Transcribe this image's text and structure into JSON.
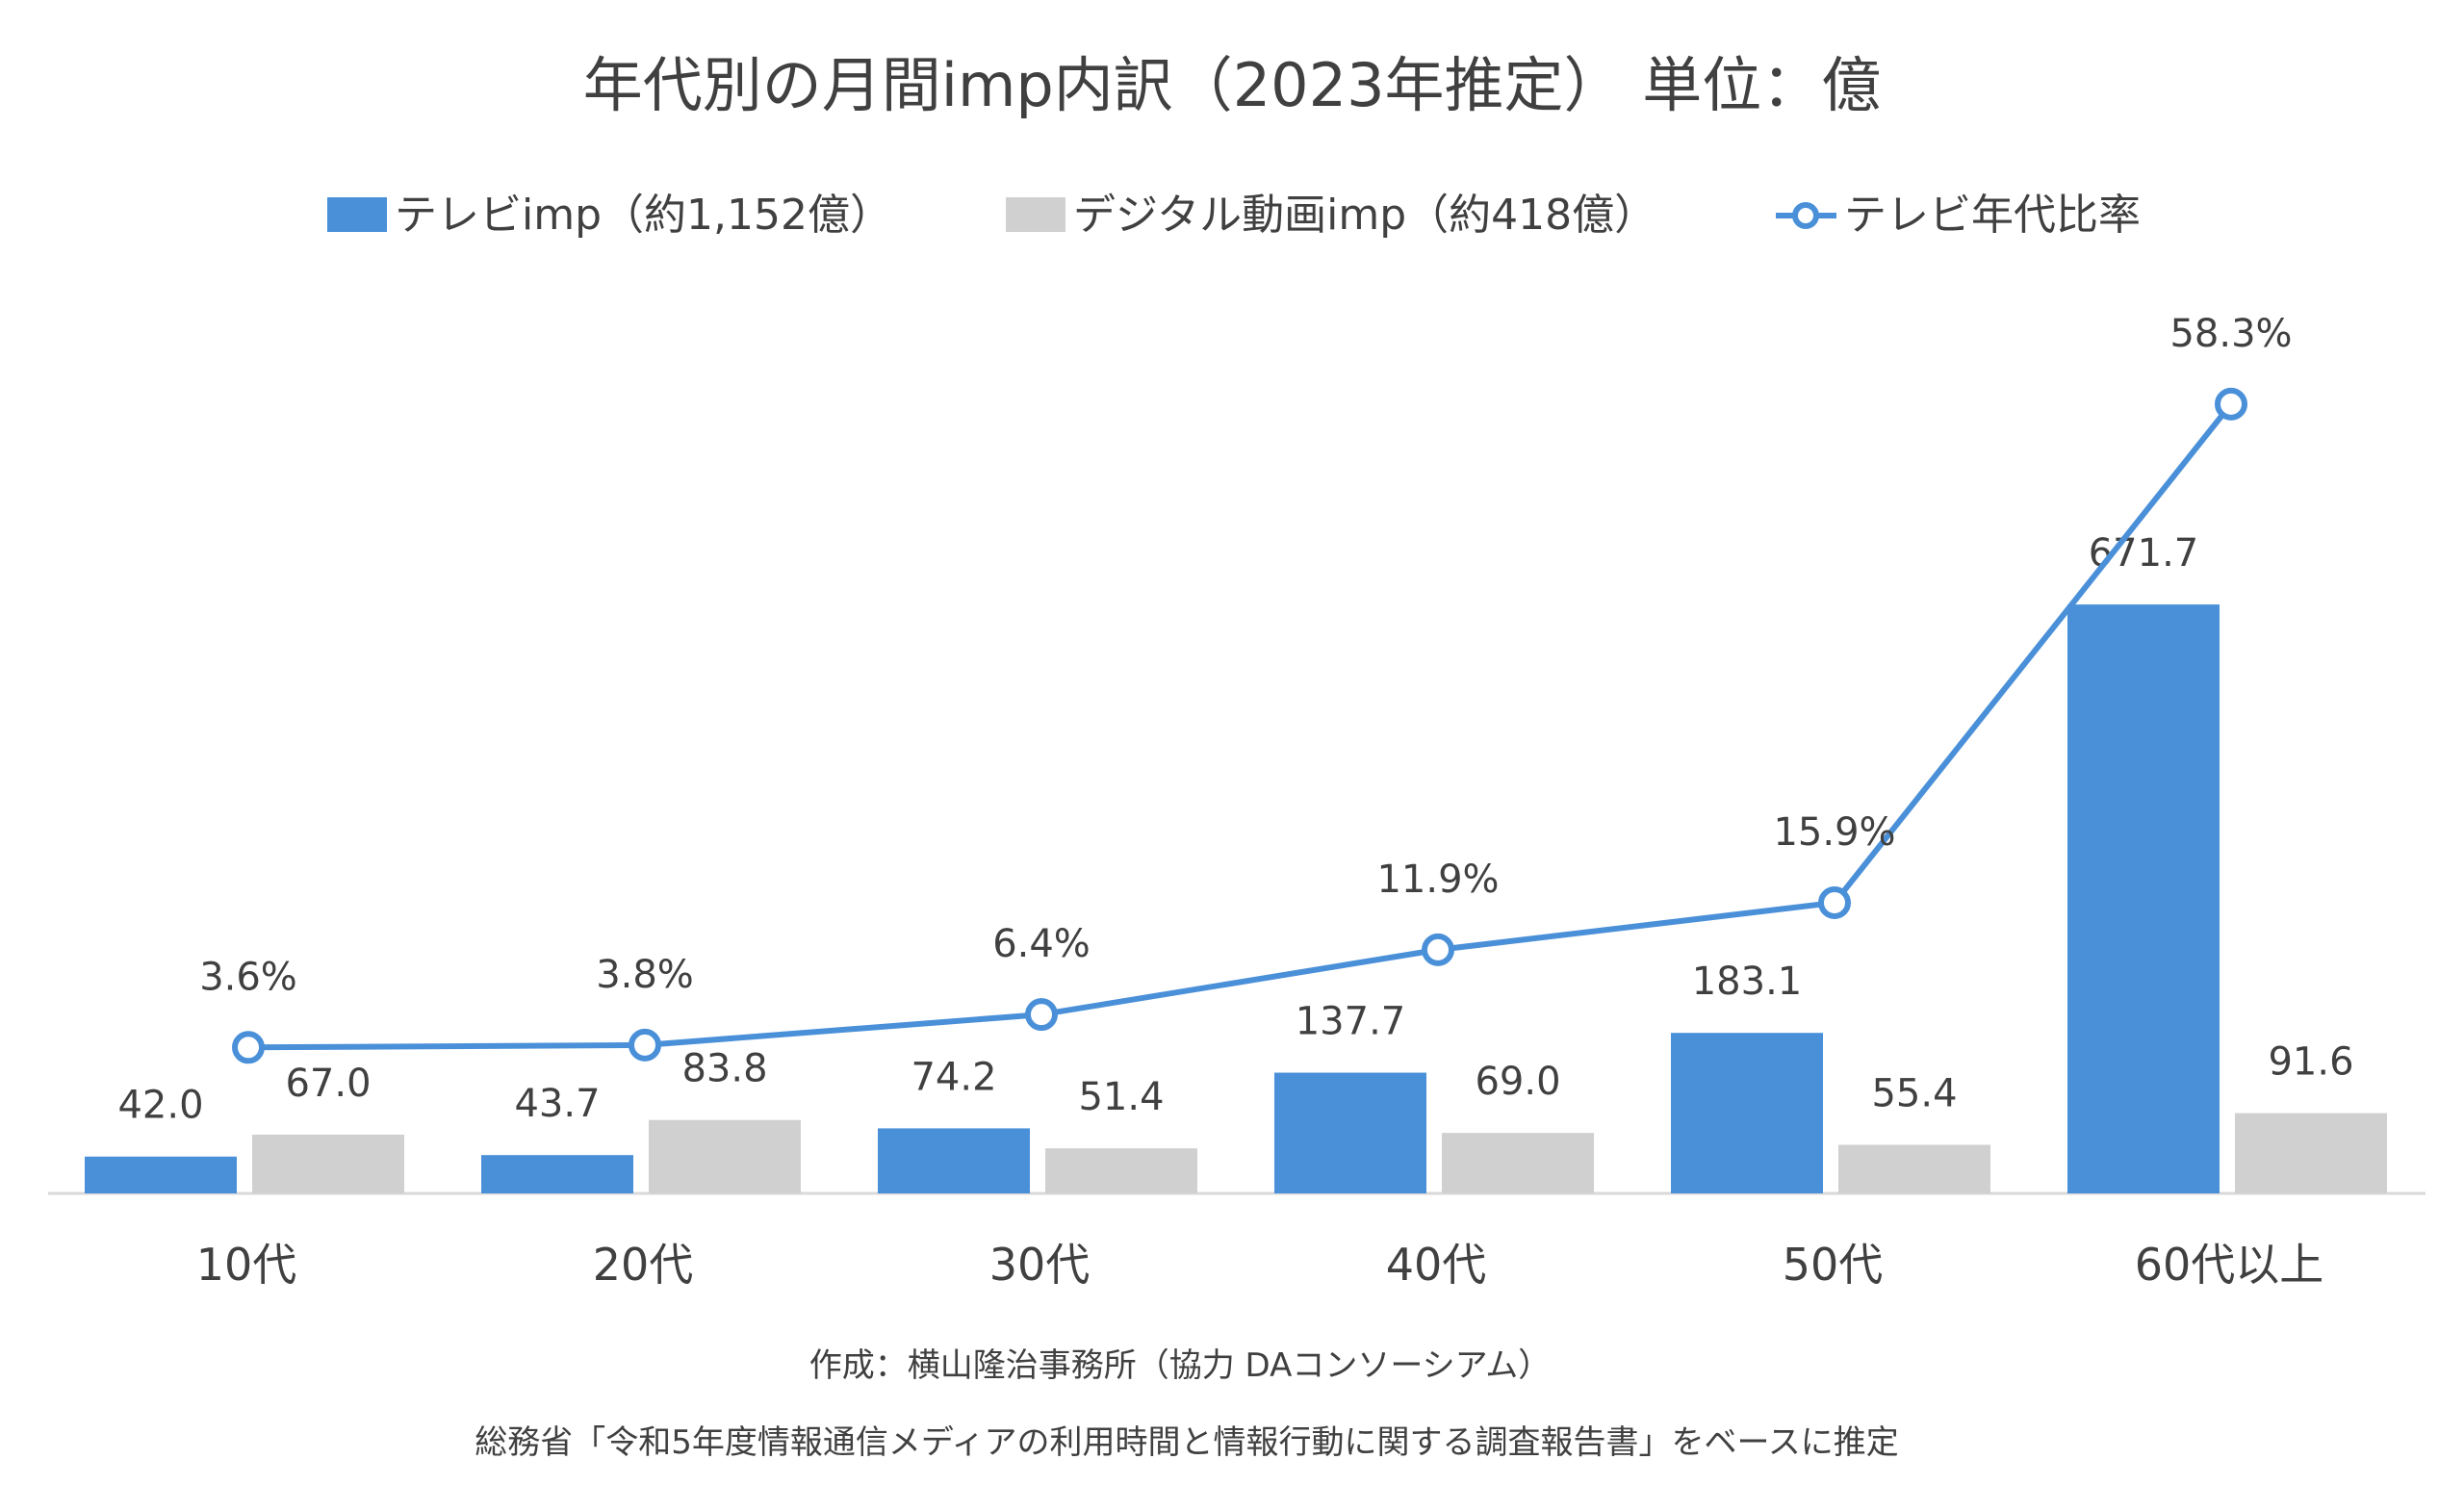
{
  "chart_data": {
    "type": "bar",
    "title": "年代別の月間imp内訳（2023年推定） 単位：億",
    "categories": [
      "10代",
      "20代",
      "30代",
      "40代",
      "50代",
      "60代以上"
    ],
    "series": [
      {
        "name": "テレビimp（約1,152億）",
        "type": "bar",
        "color": "#4a90d9",
        "values": [
          42.0,
          43.7,
          74.2,
          137.7,
          183.1,
          671.7
        ],
        "labels": [
          "42.0",
          "43.7",
          "74.2",
          "137.7",
          "183.1",
          "671.7"
        ]
      },
      {
        "name": "デジタル動画imp（約418億）",
        "type": "bar",
        "color": "#d0d0d0",
        "values": [
          67.0,
          83.8,
          51.4,
          69.0,
          55.4,
          91.6
        ],
        "labels": [
          "67.0",
          "83.8",
          "51.4",
          "69.0",
          "55.4",
          "91.6"
        ]
      },
      {
        "name": "テレビ年代比率",
        "type": "line",
        "color": "#4a90d9",
        "values": [
          3.6,
          3.8,
          6.4,
          11.9,
          15.9,
          58.3
        ],
        "labels": [
          "3.6%",
          "3.8%",
          "6.4%",
          "11.9%",
          "15.9%",
          "58.3%"
        ]
      }
    ],
    "legend_position": "top",
    "grid": false
  },
  "footnotes": [
    "作成：横山隆治事務所（協力 DAコンソーシアム）",
    "総務省「令和5年度情報通信メディアの利用時間と情報行動に関する調査報告書」をベースに推定"
  ],
  "colors": {
    "axis": "#d9d9d9",
    "text": "#404040",
    "marker_fill": "#ffffff"
  }
}
